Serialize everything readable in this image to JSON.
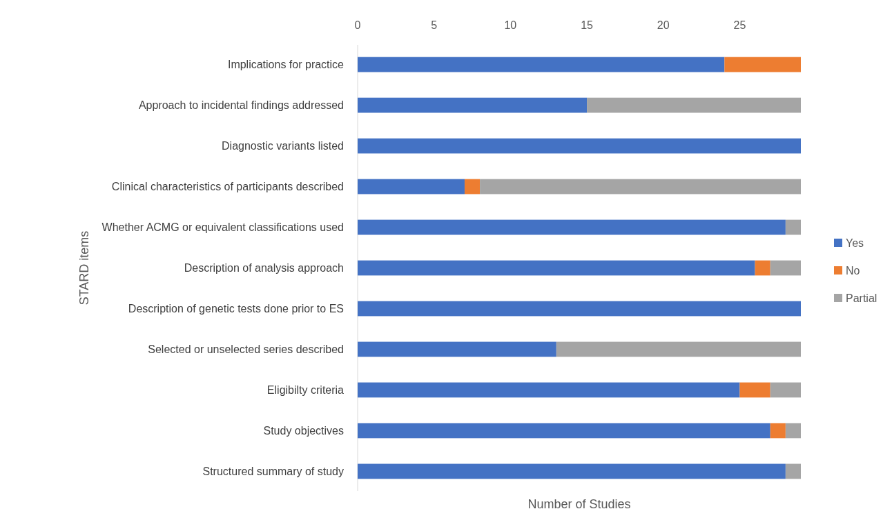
{
  "chart_data": {
    "type": "bar",
    "orientation": "horizontal",
    "stacked": true,
    "categories": [
      "Implications for practice",
      "Approach to incidental findings addressed",
      "Diagnostic variants listed",
      "Clinical characteristics of participants described",
      "Whether ACMG or equivalent classifications used",
      "Description of analysis approach",
      "Description of genetic tests done prior to ES",
      "Selected or unselected series described",
      "Eligibilty criteria",
      "Study objectives",
      "Structured summary of study"
    ],
    "series": [
      {
        "name": "Yes",
        "color": "#4472c4",
        "values": [
          24,
          15,
          29,
          7,
          28,
          26,
          29,
          13,
          25,
          27,
          28
        ]
      },
      {
        "name": "No",
        "color": "#ed7d31",
        "values": [
          5,
          0,
          0,
          1,
          0,
          1,
          0,
          0,
          2,
          1,
          0
        ]
      },
      {
        "name": "Partial",
        "color": "#a5a5a5",
        "values": [
          0,
          14,
          0,
          21,
          1,
          2,
          0,
          16,
          2,
          1,
          1
        ]
      }
    ],
    "xlim": [
      0,
      29
    ],
    "xticks": [
      0,
      5,
      10,
      15,
      20,
      25
    ],
    "xlabel": "Number of Studies",
    "ylabel": "STARD items",
    "legend": "right",
    "grid": false
  }
}
